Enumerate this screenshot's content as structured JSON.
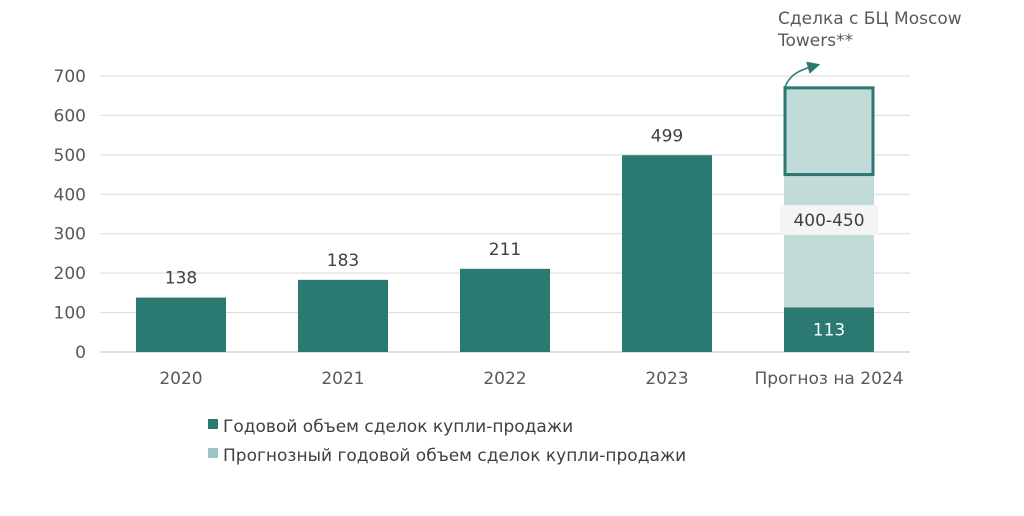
{
  "chart_data": {
    "type": "bar",
    "categories": [
      "2020",
      "2021",
      "2022",
      "2023",
      "Прогноз на 2024"
    ],
    "y_ticks": [
      0,
      100,
      200,
      300,
      400,
      500,
      600,
      700
    ],
    "ylim": [
      0,
      700
    ],
    "grid": true,
    "series": [
      {
        "name": "Годовой объем сделок купли-продажи",
        "values": [
          138,
          183,
          211,
          499,
          113
        ],
        "color": "#2a7a72"
      },
      {
        "name": "Прогнозный годовой объем сделок купли-продажи",
        "values": [
          null,
          null,
          null,
          null,
          559
        ],
        "range_label": "400-450",
        "color": "#c1dbd8"
      }
    ],
    "data_labels": [
      "138",
      "183",
      "211",
      "499",
      "113"
    ],
    "highlight_box": {
      "category": "Прогноз на 2024",
      "from": 450,
      "to": 670,
      "color": "#2a7a72"
    },
    "annotation": {
      "lines": [
        "Сделка с БЦ Moscow",
        "Towers**"
      ]
    },
    "legend_position": "bottom"
  }
}
